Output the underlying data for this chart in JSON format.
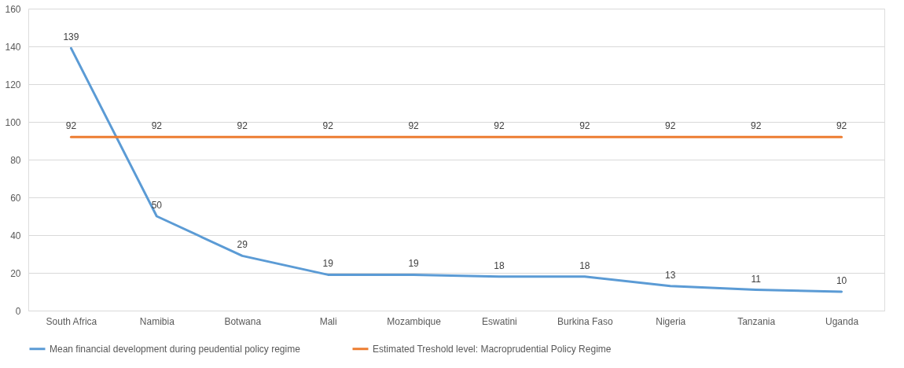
{
  "chart_data": {
    "type": "line",
    "categories": [
      "South Africa",
      "Namibia",
      "Botwana",
      "Mali",
      "Mozambique",
      "Eswatini",
      "Burkina Faso",
      "Nigeria",
      "Tanzania",
      "Uganda"
    ],
    "series": [
      {
        "name": "Mean financial development during peudential policy regime",
        "color": "#5b9bd5",
        "values": [
          139,
          50,
          29,
          19,
          19,
          18,
          18,
          13,
          11,
          10
        ]
      },
      {
        "name": "Estimated Treshold level: Macroprudential Policy Regime",
        "color": "#ed7d31",
        "values": [
          92,
          92,
          92,
          92,
          92,
          92,
          92,
          92,
          92,
          92
        ]
      }
    ],
    "ylim": [
      0,
      160
    ],
    "yticks": [
      0,
      20,
      40,
      60,
      80,
      100,
      120,
      140,
      160
    ],
    "grid": "y",
    "legend": "bottom",
    "marker": "none",
    "line_style": "solid",
    "data_labels": true
  }
}
